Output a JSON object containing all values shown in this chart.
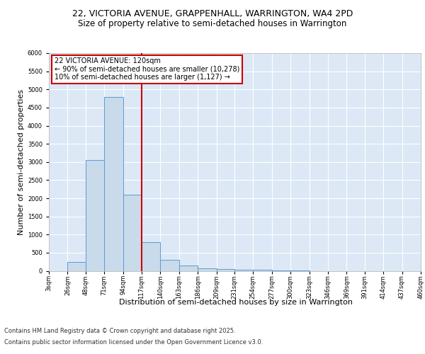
{
  "title_line1": "22, VICTORIA AVENUE, GRAPPENHALL, WARRINGTON, WA4 2PD",
  "title_line2": "Size of property relative to semi-detached houses in Warrington",
  "xlabel": "Distribution of semi-detached houses by size in Warrington",
  "ylabel": "Number of semi-detached properties",
  "bin_labels": [
    "3sqm",
    "26sqm",
    "48sqm",
    "71sqm",
    "94sqm",
    "117sqm",
    "140sqm",
    "163sqm",
    "186sqm",
    "209sqm",
    "231sqm",
    "254sqm",
    "277sqm",
    "300sqm",
    "323sqm",
    "346sqm",
    "369sqm",
    "391sqm",
    "414sqm",
    "437sqm",
    "460sqm"
  ],
  "bin_edges": [
    3,
    26,
    48,
    71,
    94,
    117,
    140,
    163,
    186,
    209,
    231,
    254,
    277,
    300,
    323,
    346,
    369,
    391,
    414,
    437,
    460
  ],
  "bar_values": [
    0,
    250,
    3050,
    4800,
    2100,
    800,
    300,
    150,
    75,
    50,
    30,
    20,
    10,
    5,
    0,
    0,
    0,
    0,
    0,
    0
  ],
  "bar_color": "#c9daea",
  "bar_edgecolor": "#5b9bd5",
  "vline_x": 117,
  "vline_color": "#cc0000",
  "annotation_title": "22 VICTORIA AVENUE: 120sqm",
  "annotation_line1": "← 90% of semi-detached houses are smaller (10,278)",
  "annotation_line2": "10% of semi-detached houses are larger (1,127) →",
  "annotation_box_color": "#cc0000",
  "ylim": [
    0,
    6000
  ],
  "yticks": [
    0,
    500,
    1000,
    1500,
    2000,
    2500,
    3000,
    3500,
    4000,
    4500,
    5000,
    5500,
    6000
  ],
  "background_color": "#dce8f5",
  "grid_color": "#ffffff",
  "footer_line1": "Contains HM Land Registry data © Crown copyright and database right 2025.",
  "footer_line2": "Contains public sector information licensed under the Open Government Licence v3.0.",
  "title_fontsize": 9,
  "subtitle_fontsize": 8.5,
  "axis_label_fontsize": 8,
  "tick_fontsize": 6,
  "annotation_fontsize": 7,
  "footer_fontsize": 6
}
